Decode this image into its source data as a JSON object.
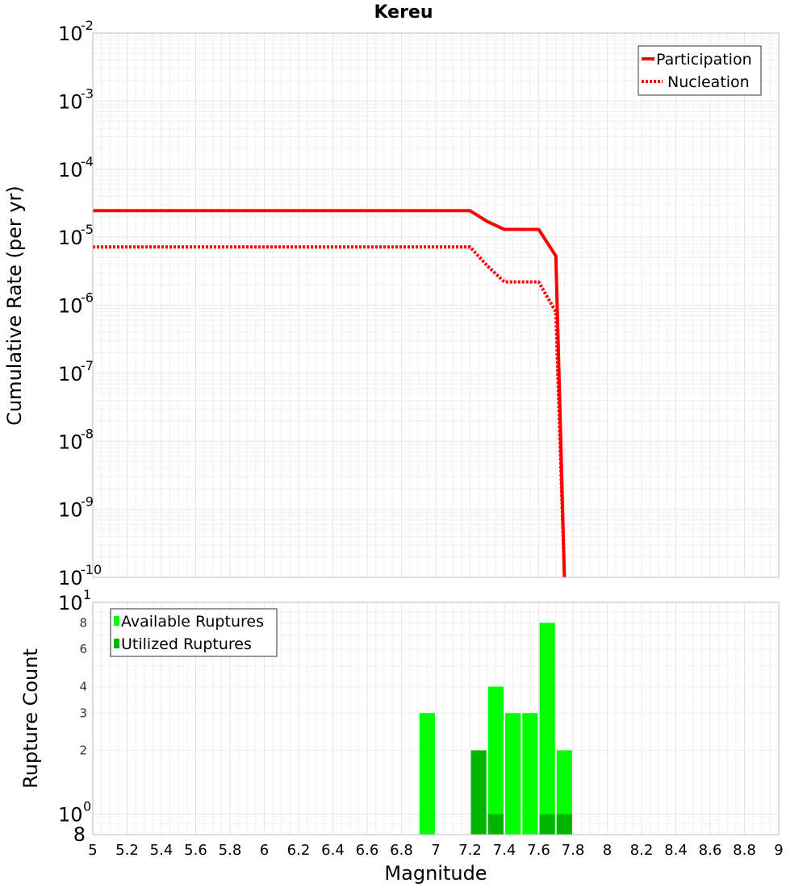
{
  "chart_data": [
    {
      "type": "line",
      "title": "Kereu",
      "xlabel": "Magnitude",
      "ylabel": "Cumulative Rate (per yr)",
      "xlim": [
        5,
        9
      ],
      "ylim": [
        1e-10,
        0.01
      ],
      "yscale": "log",
      "x_ticks": [
        "5",
        "5.2",
        "5.4",
        "5.6",
        "5.8",
        "6",
        "6.2",
        "6.4",
        "6.6",
        "6.8",
        "7",
        "7.2",
        "7.4",
        "7.6",
        "7.8",
        "8",
        "8.2",
        "8.4",
        "8.6",
        "8.8",
        "9"
      ],
      "y_ticks": [
        {
          "base": "10",
          "exp": "-2",
          "value": 0.01
        },
        {
          "base": "10",
          "exp": "-3",
          "value": 0.001
        },
        {
          "base": "10",
          "exp": "-4",
          "value": 0.0001
        },
        {
          "base": "10",
          "exp": "-5",
          "value": 1e-05
        },
        {
          "base": "10",
          "exp": "-6",
          "value": 1e-06
        },
        {
          "base": "10",
          "exp": "-7",
          "value": 1e-07
        },
        {
          "base": "10",
          "exp": "-8",
          "value": 1e-08
        },
        {
          "base": "10",
          "exp": "-9",
          "value": 1e-09
        },
        {
          "base": "10",
          "exp": "-10",
          "value": 1e-10
        }
      ],
      "legend_position": "top-right",
      "series": [
        {
          "name": "Participation",
          "style": "solid",
          "color": "#ff0000",
          "x": [
            5.0,
            7.2,
            7.3,
            7.4,
            7.5,
            7.6,
            7.7,
            7.75
          ],
          "y": [
            2.45e-05,
            2.45e-05,
            1.7e-05,
            1.3e-05,
            1.3e-05,
            1.3e-05,
            5.3e-06,
            1e-10
          ]
        },
        {
          "name": "Nucleation",
          "style": "dotted",
          "color": "#ff0000",
          "x": [
            5.0,
            7.2,
            7.3,
            7.4,
            7.5,
            7.6,
            7.7,
            7.75
          ],
          "y": [
            7.2e-06,
            7.2e-06,
            3.8e-06,
            2.2e-06,
            2.2e-06,
            2.2e-06,
            8e-07,
            1e-10
          ]
        }
      ]
    },
    {
      "type": "bar",
      "xlabel": "Magnitude",
      "ylabel": "Rupture Count",
      "xlim": [
        5,
        9
      ],
      "ylim": [
        0.8,
        10
      ],
      "yscale": "log",
      "bar_width": 0.09,
      "y_ticks_small": [
        {
          "label": "8",
          "value": 8
        },
        {
          "label": "6",
          "value": 6
        },
        {
          "label": "4",
          "value": 4
        },
        {
          "label": "3",
          "value": 3
        },
        {
          "label": "2",
          "value": 2
        }
      ],
      "y_ticks_decade": [
        {
          "base": "10",
          "exp": "1",
          "value": 10
        },
        {
          "base": "10",
          "exp": "0",
          "value": 1
        }
      ],
      "y_bottom_label": "8",
      "legend_position": "top-left",
      "series": [
        {
          "name": "Available Ruptures",
          "color": "#00ff00",
          "x": [
            6.95,
            7.35,
            7.45,
            7.55,
            7.65,
            7.75
          ],
          "values": [
            3,
            4,
            3,
            3,
            8,
            2
          ]
        },
        {
          "name": "Utilized Ruptures",
          "color": "#00b400",
          "x": [
            7.25,
            7.35,
            7.65,
            7.75
          ],
          "values": [
            2,
            1,
            1,
            1
          ]
        }
      ]
    }
  ]
}
